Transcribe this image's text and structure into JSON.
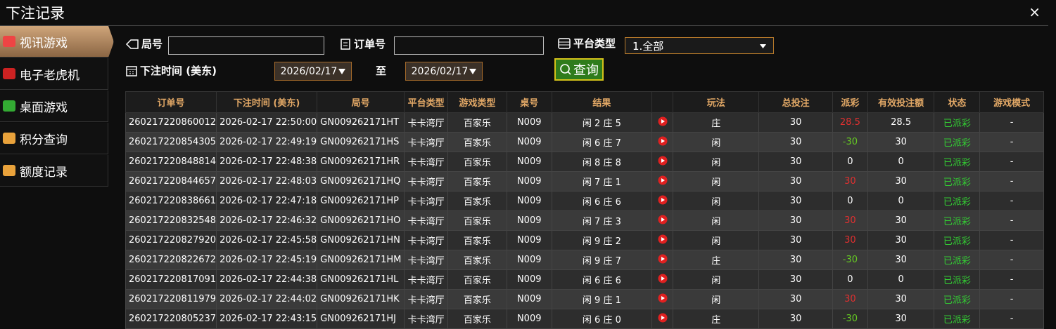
{
  "title": "下注记录",
  "close": "×",
  "sidebar": [
    "视讯游戏",
    "电子老虎机",
    "桌面游戏",
    "积分查询",
    "额度记录"
  ],
  "filters": {
    "round_label": "局号",
    "order_label": "订单号",
    "platform_label": "平台类型",
    "platform_value": "1.全部",
    "time_label": "下注时间 (美东)",
    "date_from": "2026/02/17",
    "to_label": "至",
    "date_to": "2026/02/17",
    "query_button": "查询"
  },
  "table": {
    "columns": [
      "订单号",
      "下注时间 (美东)",
      "局号",
      "平台类型",
      "游戏类型",
      "桌号",
      "结果",
      "玩法",
      "总投注",
      "派彩",
      "有效投注额",
      "状态",
      "游戏模式"
    ],
    "rows": [
      [
        "260217220860012",
        "2026-02-17 22:50:00",
        "GN009262171HT",
        "卡卡湾厅",
        "百家乐",
        "N009",
        "闲 2 庄 5",
        "庄",
        30,
        28.5,
        28.5,
        "已派彩",
        "-"
      ],
      [
        "260217220854305",
        "2026-02-17 22:49:19",
        "GN009262171HS",
        "卡卡湾厅",
        "百家乐",
        "N009",
        "闲 6 庄 7",
        "闲",
        30,
        -30,
        30,
        "已派彩",
        "-"
      ],
      [
        "260217220848814",
        "2026-02-17 22:48:38",
        "GN009262171HR",
        "卡卡湾厅",
        "百家乐",
        "N009",
        "闲 8 庄 8",
        "闲",
        30,
        0,
        0,
        "已派彩",
        "-"
      ],
      [
        "260217220844657",
        "2026-02-17 22:48:03",
        "GN009262171HQ",
        "卡卡湾厅",
        "百家乐",
        "N009",
        "闲 7 庄 1",
        "闲",
        30,
        30,
        30,
        "已派彩",
        "-"
      ],
      [
        "260217220838661",
        "2026-02-17 22:47:18",
        "GN009262171HP",
        "卡卡湾厅",
        "百家乐",
        "N009",
        "闲 6 庄 6",
        "闲",
        30,
        0,
        0,
        "已派彩",
        "-"
      ],
      [
        "260217220832548",
        "2026-02-17 22:46:32",
        "GN009262171HO",
        "卡卡湾厅",
        "百家乐",
        "N009",
        "闲 7 庄 3",
        "闲",
        30,
        30,
        30,
        "已派彩",
        "-"
      ],
      [
        "260217220827920",
        "2026-02-17 22:45:58",
        "GN009262171HN",
        "卡卡湾厅",
        "百家乐",
        "N009",
        "闲 9 庄 2",
        "闲",
        30,
        30,
        30,
        "已派彩",
        "-"
      ],
      [
        "260217220822672",
        "2026-02-17 22:45:19",
        "GN009262171HM",
        "卡卡湾厅",
        "百家乐",
        "N009",
        "闲 9 庄 7",
        "庄",
        30,
        -30,
        30,
        "已派彩",
        "-"
      ],
      [
        "260217220817091",
        "2026-02-17 22:44:38",
        "GN009262171HL",
        "卡卡湾厅",
        "百家乐",
        "N009",
        "闲 6 庄 6",
        "闲",
        30,
        0,
        0,
        "已派彩",
        "-"
      ],
      [
        "260217220811979",
        "2026-02-17 22:44:02",
        "GN009262171HK",
        "卡卡湾厅",
        "百家乐",
        "N009",
        "闲 9 庄 1",
        "闲",
        30,
        30,
        30,
        "已派彩",
        "-"
      ],
      [
        "260217220805237",
        "2026-02-17 22:43:15",
        "GN009262171HJ",
        "卡卡湾厅",
        "百家乐",
        "N009",
        "闲 6 庄 0",
        "庄",
        30,
        -30,
        30,
        "已派彩",
        "-"
      ]
    ]
  }
}
